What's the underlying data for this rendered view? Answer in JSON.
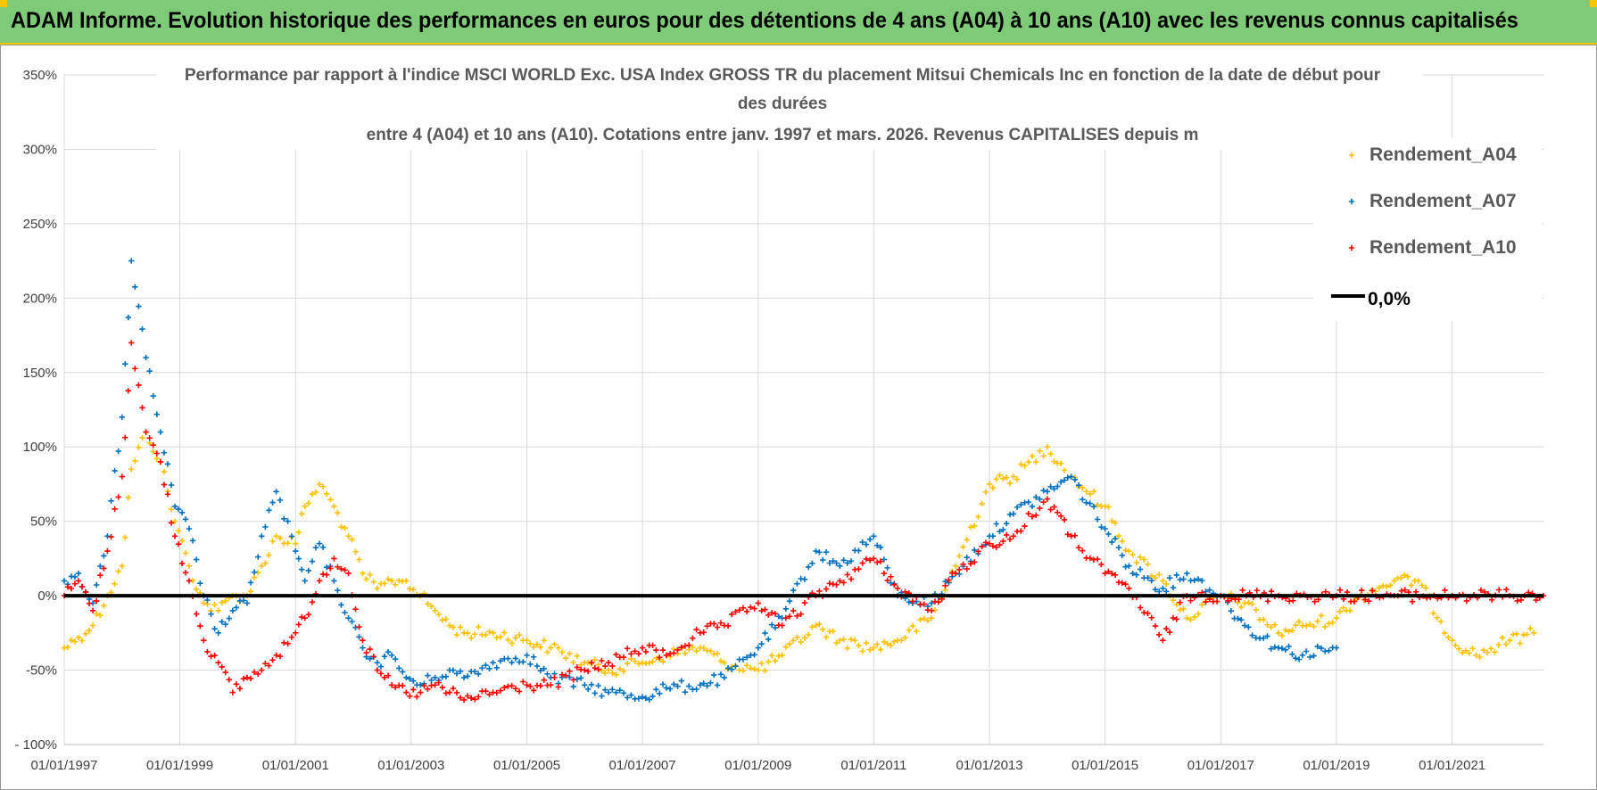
{
  "banner": {
    "title": "ADAM Informe. Evolution historique des performances en euros pour des détentions de 4 ans (A04) à 10 ans (A10) avec les revenus connus capitalisés"
  },
  "colors": {
    "banner_bg": "#7fca78",
    "banner_accent": "#f2c500",
    "A04": "#ffc000",
    "A07": "#0070c0",
    "A10": "#ff0000",
    "zero_line": "#000000",
    "grid": "#d9d9d9"
  },
  "chart_data": {
    "type": "scatter",
    "title_lines": [
      "Performance par rapport à l'indice MSCI WORLD Exc. USA Index GROSS TR  du placement Mitsui Chemicals Inc en fonction de la date de début pour",
      "des durées",
      "entre 4 (A04) et 10 ans (A10).  Cotations entre janv. 1997 et mars. 2026.  Revenus CAPITALISES depuis m"
    ],
    "x_range": [
      "1997-01-01",
      "2022-08-01"
    ],
    "x_ticks": [
      "01/01/1997",
      "01/01/1999",
      "01/01/2001",
      "01/01/2003",
      "01/01/2005",
      "01/01/2007",
      "01/01/2009",
      "01/01/2011",
      "01/01/2013",
      "01/01/2015",
      "01/01/2017",
      "01/01/2019",
      "01/01/2021"
    ],
    "y_range": [
      -100,
      350
    ],
    "y_ticks": [
      "350%",
      "300%",
      "250%",
      "200%",
      "150%",
      "100%",
      "50%",
      "0%",
      "-50%",
      "- 100%"
    ],
    "y_tick_values": [
      350,
      300,
      250,
      200,
      150,
      100,
      50,
      0,
      -50,
      -100
    ],
    "grid": true,
    "legend_position": "top-right",
    "legend": [
      "Rendement_A04",
      "Rendement_A07",
      "Rendement_A10",
      "0,0%"
    ],
    "series": [
      {
        "name": "Rendement_A04",
        "color_key": "A04",
        "points": [
          [
            "1997-01-01",
            -35
          ],
          [
            "1997-04-01",
            -28
          ],
          [
            "1997-07-01",
            -20
          ],
          [
            "1997-10-01",
            0
          ],
          [
            "1998-01-01",
            20
          ],
          [
            "1998-03-01",
            85
          ],
          [
            "1998-06-01",
            110
          ],
          [
            "1998-09-01",
            90
          ],
          [
            "1998-12-01",
            50
          ],
          [
            "1999-03-01",
            20
          ],
          [
            "1999-06-01",
            -5
          ],
          [
            "1999-09-01",
            -10
          ],
          [
            "1999-12-01",
            0
          ],
          [
            "2000-03-01",
            0
          ],
          [
            "2000-06-01",
            20
          ],
          [
            "2000-09-01",
            40
          ],
          [
            "2001-01-01",
            35
          ],
          [
            "2001-03-01",
            60
          ],
          [
            "2001-06-01",
            75
          ],
          [
            "2001-09-01",
            60
          ],
          [
            "2001-12-01",
            40
          ],
          [
            "2002-03-01",
            15
          ],
          [
            "2002-06-01",
            5
          ],
          [
            "2002-09-01",
            10
          ],
          [
            "2002-12-01",
            10
          ],
          [
            "2003-03-01",
            0
          ],
          [
            "2003-06-01",
            -10
          ],
          [
            "2003-09-01",
            -20
          ],
          [
            "2003-12-01",
            -25
          ],
          [
            "2004-06-01",
            -25
          ],
          [
            "2005-01-01",
            -30
          ],
          [
            "2005-06-01",
            -35
          ],
          [
            "2006-01-01",
            -45
          ],
          [
            "2006-06-01",
            -50
          ],
          [
            "2007-01-01",
            -45
          ],
          [
            "2007-06-01",
            -40
          ],
          [
            "2008-01-01",
            -35
          ],
          [
            "2008-06-01",
            -45
          ],
          [
            "2009-01-01",
            -50
          ],
          [
            "2009-06-01",
            -40
          ],
          [
            "2010-01-01",
            -20
          ],
          [
            "2010-06-01",
            -30
          ],
          [
            "2011-01-01",
            -35
          ],
          [
            "2011-06-01",
            -30
          ],
          [
            "2012-01-01",
            -15
          ],
          [
            "2012-06-01",
            20
          ],
          [
            "2013-01-01",
            75
          ],
          [
            "2013-06-01",
            80
          ],
          [
            "2014-01-01",
            100
          ],
          [
            "2014-06-01",
            80
          ],
          [
            "2015-01-01",
            60
          ],
          [
            "2015-06-01",
            30
          ],
          [
            "2016-01-01",
            10
          ],
          [
            "2016-06-01",
            -15
          ],
          [
            "2017-01-01",
            0
          ],
          [
            "2017-06-01",
            -5
          ],
          [
            "2018-01-01",
            -25
          ],
          [
            "2018-06-01",
            -20
          ],
          [
            "2019-01-01",
            -15
          ],
          [
            "2019-06-01",
            0
          ],
          [
            "2020-01-01",
            10
          ],
          [
            "2020-06-01",
            10
          ],
          [
            "2021-01-01",
            -30
          ],
          [
            "2021-06-01",
            -40
          ],
          [
            "2022-01-01",
            -30
          ],
          [
            "2022-06-01",
            -25
          ]
        ]
      },
      {
        "name": "Rendement_A07",
        "color_key": "A07",
        "points": [
          [
            "1997-01-01",
            10
          ],
          [
            "1997-04-01",
            15
          ],
          [
            "1997-07-01",
            -5
          ],
          [
            "1997-10-01",
            40
          ],
          [
            "1998-01-01",
            120
          ],
          [
            "1998-03-01",
            225
          ],
          [
            "1998-06-01",
            160
          ],
          [
            "1998-09-01",
            110
          ],
          [
            "1998-12-01",
            60
          ],
          [
            "1999-03-01",
            45
          ],
          [
            "1999-06-01",
            0
          ],
          [
            "1999-09-01",
            -25
          ],
          [
            "1999-12-01",
            -10
          ],
          [
            "2000-03-01",
            -5
          ],
          [
            "2000-06-01",
            40
          ],
          [
            "2000-09-01",
            70
          ],
          [
            "2001-01-01",
            30
          ],
          [
            "2001-03-01",
            10
          ],
          [
            "2001-06-01",
            35
          ],
          [
            "2001-09-01",
            10
          ],
          [
            "2001-12-01",
            -15
          ],
          [
            "2002-03-01",
            -35
          ],
          [
            "2002-06-01",
            -45
          ],
          [
            "2002-09-01",
            -40
          ],
          [
            "2002-12-01",
            -55
          ],
          [
            "2003-03-01",
            -60
          ],
          [
            "2003-06-01",
            -55
          ],
          [
            "2003-09-01",
            -50
          ],
          [
            "2003-12-01",
            -55
          ],
          [
            "2004-06-01",
            -45
          ],
          [
            "2005-01-01",
            -40
          ],
          [
            "2005-06-01",
            -55
          ],
          [
            "2006-01-01",
            -60
          ],
          [
            "2006-06-01",
            -65
          ],
          [
            "2007-01-01",
            -68
          ],
          [
            "2007-06-01",
            -62
          ],
          [
            "2008-01-01",
            -60
          ],
          [
            "2008-06-01",
            -55
          ],
          [
            "2009-01-01",
            -35
          ],
          [
            "2009-06-01",
            -15
          ],
          [
            "2010-01-01",
            30
          ],
          [
            "2010-06-01",
            20
          ],
          [
            "2011-01-01",
            40
          ],
          [
            "2011-06-01",
            0
          ],
          [
            "2012-01-01",
            -5
          ],
          [
            "2012-06-01",
            15
          ],
          [
            "2013-01-01",
            40
          ],
          [
            "2013-06-01",
            55
          ],
          [
            "2014-01-01",
            70
          ],
          [
            "2014-06-01",
            80
          ],
          [
            "2015-01-01",
            45
          ],
          [
            "2015-06-01",
            20
          ],
          [
            "2016-01-01",
            5
          ],
          [
            "2016-06-01",
            15
          ],
          [
            "2017-01-01",
            0
          ],
          [
            "2017-06-01",
            -20
          ],
          [
            "2018-01-01",
            -35
          ],
          [
            "2018-06-01",
            -40
          ],
          [
            "2019-01-01",
            -35
          ]
        ]
      },
      {
        "name": "Rendement_A10",
        "color_key": "A10",
        "points": [
          [
            "1997-01-01",
            0
          ],
          [
            "1997-04-01",
            10
          ],
          [
            "1997-07-01",
            -10
          ],
          [
            "1997-10-01",
            30
          ],
          [
            "1998-01-01",
            80
          ],
          [
            "1998-03-01",
            170
          ],
          [
            "1998-06-01",
            110
          ],
          [
            "1998-09-01",
            90
          ],
          [
            "1998-12-01",
            40
          ],
          [
            "1999-03-01",
            10
          ],
          [
            "1999-06-01",
            -30
          ],
          [
            "1999-09-01",
            -45
          ],
          [
            "1999-12-01",
            -65
          ],
          [
            "2000-03-01",
            -55
          ],
          [
            "2000-06-01",
            -50
          ],
          [
            "2000-09-01",
            -40
          ],
          [
            "2001-01-01",
            -25
          ],
          [
            "2001-03-01",
            -15
          ],
          [
            "2001-06-01",
            10
          ],
          [
            "2001-09-01",
            25
          ],
          [
            "2001-12-01",
            15
          ],
          [
            "2002-03-01",
            -30
          ],
          [
            "2002-06-01",
            -50
          ],
          [
            "2002-09-01",
            -60
          ],
          [
            "2002-12-01",
            -65
          ],
          [
            "2003-03-01",
            -65
          ],
          [
            "2003-06-01",
            -60
          ],
          [
            "2003-09-01",
            -65
          ],
          [
            "2003-12-01",
            -70
          ],
          [
            "2004-06-01",
            -65
          ],
          [
            "2005-01-01",
            -60
          ],
          [
            "2005-06-01",
            -60
          ],
          [
            "2006-01-01",
            -50
          ],
          [
            "2006-06-01",
            -45
          ],
          [
            "2007-01-01",
            -35
          ],
          [
            "2007-06-01",
            -40
          ],
          [
            "2008-01-01",
            -25
          ],
          [
            "2008-06-01",
            -20
          ],
          [
            "2009-01-01",
            -5
          ],
          [
            "2009-06-01",
            -20
          ],
          [
            "2010-01-01",
            0
          ],
          [
            "2010-06-01",
            10
          ],
          [
            "2011-01-01",
            25
          ],
          [
            "2011-06-01",
            5
          ],
          [
            "2012-01-01",
            -10
          ],
          [
            "2012-06-01",
            15
          ],
          [
            "2013-01-01",
            35
          ],
          [
            "2013-06-01",
            40
          ],
          [
            "2014-01-01",
            65
          ],
          [
            "2014-06-01",
            40
          ],
          [
            "2015-01-01",
            15
          ],
          [
            "2015-06-01",
            5
          ],
          [
            "2016-01-01",
            -30
          ],
          [
            "2016-06-01",
            0
          ],
          [
            "2017-01-01",
            0
          ],
          [
            "2018-01-01",
            0
          ],
          [
            "2019-01-01",
            0
          ],
          [
            "2020-01-01",
            0
          ],
          [
            "2021-01-01",
            0
          ],
          [
            "2022-01-01",
            0
          ],
          [
            "2022-08-01",
            0
          ]
        ]
      },
      {
        "name": "0,0%",
        "color_key": "zero_line",
        "type": "line",
        "points": [
          [
            "1997-01-01",
            0
          ],
          [
            "2022-08-01",
            0
          ]
        ]
      }
    ]
  }
}
